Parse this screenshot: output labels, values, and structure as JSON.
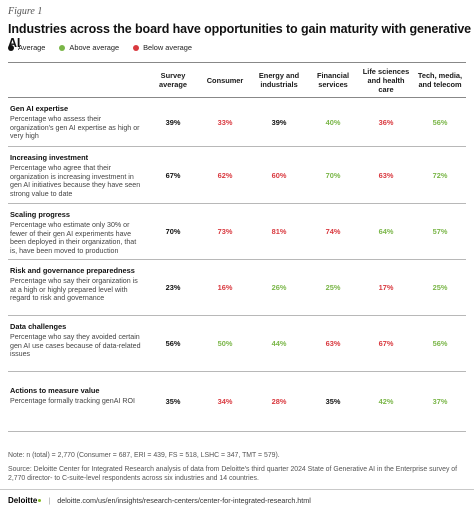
{
  "figure_label": "Figure 1",
  "title": "Industries across the board have opportunities to gain maturity with generative AI",
  "colors": {
    "average": "#111111",
    "above": "#7ab648",
    "below": "#d9393f",
    "logo_dot": "#86bc25"
  },
  "legend": [
    {
      "label": "Average",
      "status": "average"
    },
    {
      "label": "Above average",
      "status": "above"
    },
    {
      "label": "Below average",
      "status": "below"
    }
  ],
  "columns": [
    "Survey average",
    "Consumer",
    "Energy and industrials",
    "Financial services",
    "Life sciences and health care",
    "Tech, media, and telecom"
  ],
  "rows": [
    {
      "title": "Gen AI expertise",
      "desc": "Percentage who assess their organization's gen AI expertise as high or very high",
      "values": [
        {
          "v": "39%",
          "s": "average"
        },
        {
          "v": "33%",
          "s": "below"
        },
        {
          "v": "39%",
          "s": "average"
        },
        {
          "v": "40%",
          "s": "above"
        },
        {
          "v": "36%",
          "s": "below"
        },
        {
          "v": "56%",
          "s": "above"
        }
      ]
    },
    {
      "title": "Increasing investment",
      "desc": "Percentage who agree that their organization is increasing investment in gen AI initiatives because they have seen strong value to date",
      "values": [
        {
          "v": "67%",
          "s": "average"
        },
        {
          "v": "62%",
          "s": "below"
        },
        {
          "v": "60%",
          "s": "below"
        },
        {
          "v": "70%",
          "s": "above"
        },
        {
          "v": "63%",
          "s": "below"
        },
        {
          "v": "72%",
          "s": "above"
        }
      ]
    },
    {
      "title": "Scaling progress",
      "desc": "Percentage who estimate only 30% or fewer of their gen AI experiments have been deployed in their organization, that is, have been moved to production",
      "values": [
        {
          "v": "70%",
          "s": "average"
        },
        {
          "v": "73%",
          "s": "below"
        },
        {
          "v": "81%",
          "s": "below"
        },
        {
          "v": "74%",
          "s": "below"
        },
        {
          "v": "64%",
          "s": "above"
        },
        {
          "v": "57%",
          "s": "above"
        }
      ]
    },
    {
      "title": "Risk and governance preparedness",
      "desc": "Percentage who say their organization is at a high or highly prepared level with regard to risk and governance",
      "values": [
        {
          "v": "23%",
          "s": "average"
        },
        {
          "v": "16%",
          "s": "below"
        },
        {
          "v": "26%",
          "s": "above"
        },
        {
          "v": "25%",
          "s": "above"
        },
        {
          "v": "17%",
          "s": "below"
        },
        {
          "v": "25%",
          "s": "above"
        }
      ]
    },
    {
      "title": "Data challenges",
      "desc": "Percentage who say they avoided certain gen AI use cases because of data-related issues",
      "values": [
        {
          "v": "56%",
          "s": "average"
        },
        {
          "v": "50%",
          "s": "above"
        },
        {
          "v": "44%",
          "s": "above"
        },
        {
          "v": "63%",
          "s": "below"
        },
        {
          "v": "67%",
          "s": "below"
        },
        {
          "v": "56%",
          "s": "above"
        }
      ]
    },
    {
      "title": "Actions to measure value",
      "desc": "Percentage formally tracking genAI ROI",
      "values": [
        {
          "v": "35%",
          "s": "average"
        },
        {
          "v": "34%",
          "s": "below"
        },
        {
          "v": "28%",
          "s": "below"
        },
        {
          "v": "35%",
          "s": "average"
        },
        {
          "v": "42%",
          "s": "above"
        },
        {
          "v": "37%",
          "s": "above"
        }
      ]
    }
  ],
  "note": "Note: n (total) = 2,770 (Consumer = 687, ERI = 439, FS = 518, LSHC = 347, TMT = 579).",
  "source": "Source: Deloitte Center for Integrated Research analysis of data from Deloitte's third quarter 2024 State of Generative AI in the Enterprise survey of 2,770 director- to C-suite-level respondents across six industries and 14 countries.",
  "footer": {
    "logo_text": "Deloitte",
    "url": "deloitte.com/us/en/insights/research-centers/center-for-integrated-research.html"
  }
}
